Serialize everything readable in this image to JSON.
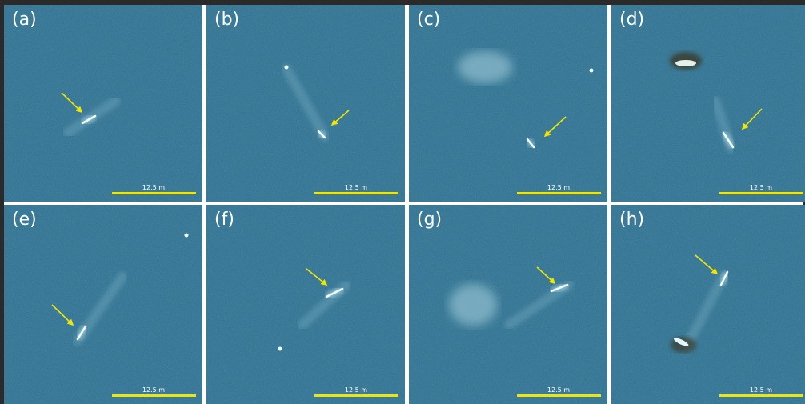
{
  "panels": [
    {
      "label": "(a)",
      "scale_text": "12.5 m"
    },
    {
      "label": "(b)",
      "scale_text": "12.5 m"
    },
    {
      "label": "(c)",
      "scale_text": "12.5 m"
    },
    {
      "label": "(d)",
      "scale_text": "12.5 m"
    },
    {
      "label": "(e)",
      "scale_text": "12.5 m"
    },
    {
      "label": "(f)",
      "scale_text": "12.5 m"
    },
    {
      "label": "(g)",
      "scale_text": "12.5 m"
    },
    {
      "label": "(h)",
      "scale_text": "12.5 m"
    }
  ]
}
